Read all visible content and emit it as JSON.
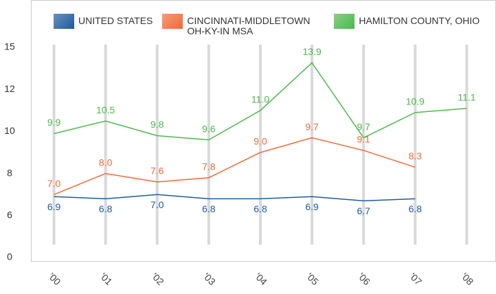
{
  "chart_data": {
    "type": "line",
    "categories": [
      "'00",
      "'01",
      "'02",
      "'03",
      "'04",
      "'05",
      "'06",
      "'07",
      "'08"
    ],
    "series": [
      {
        "name": "UNITED STATES",
        "color": "#1d5b9c",
        "values": [
          6.9,
          6.8,
          7.0,
          6.8,
          6.8,
          6.9,
          6.7,
          6.8,
          null
        ],
        "value_labels": [
          "6.9",
          "6.8",
          "7.0",
          "6.8",
          "6.8",
          "6.9",
          "6.7",
          "6.8",
          null
        ]
      },
      {
        "name": "CINCINNATI-MIDDLETOWN OH-KY-IN MSA",
        "color": "#f06a35",
        "values": [
          7.0,
          8.0,
          7.6,
          7.8,
          9.0,
          9.7,
          9.1,
          8.3,
          null
        ],
        "value_labels": [
          "7.0",
          "8.0",
          "7.6",
          "7.8",
          "9.0",
          "9.7",
          "9.1",
          "8.3",
          null
        ]
      },
      {
        "name": "HAMILTON COUNTY, OHIO",
        "color": "#4cb84c",
        "values": [
          9.9,
          10.5,
          9.8,
          9.6,
          11.0,
          13.9,
          9.7,
          10.9,
          11.1
        ],
        "value_labels": [
          "9.9",
          "10.5",
          "9.8",
          "9.6",
          "11.0",
          "13.9",
          "9.7",
          "10.9",
          "11.1"
        ]
      }
    ],
    "ylim": [
      0,
      15
    ],
    "yticks": [
      0,
      6,
      8,
      10,
      12,
      15
    ]
  }
}
